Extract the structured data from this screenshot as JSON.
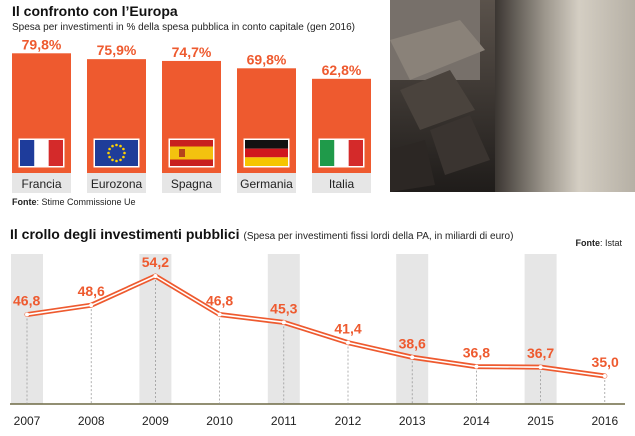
{
  "top": {
    "title": "Il confronto con l’Europa",
    "subtitle": "Spesa per investimenti in % della spesa pubblica in conto capitale (gen 2016)",
    "source_label": "Fonte",
    "source_text": ": Stime Commissione Ue"
  },
  "bottom": {
    "title": "Il crollo degli investimenti pubblici",
    "subtitle": "(Spesa per investimenti fissi lordi della PA, in miliardi di euro)",
    "source_label": "Fonte",
    "source_text": ": Istat"
  },
  "colors": {
    "accent": "#EE5A2F",
    "band": "#E6E6E6",
    "baseline": "#6E6A45"
  },
  "chart_data": [
    {
      "type": "bar",
      "categories": [
        "Francia",
        "Eurozona",
        "Spagna",
        "Germania",
        "Italia"
      ],
      "values": [
        79.8,
        75.9,
        74.7,
        69.8,
        62.8
      ],
      "value_labels": [
        "79,8%",
        "75,9%",
        "74,7%",
        "69,8%",
        "62,8%"
      ],
      "flags": [
        "france-flag",
        "eu-flag",
        "spain-flag",
        "germany-flag",
        "italy-flag"
      ],
      "ylim": [
        0,
        80
      ]
    },
    {
      "type": "line",
      "x": [
        "2007",
        "2008",
        "2009",
        "2010",
        "2011",
        "2012",
        "2013",
        "2014",
        "2015",
        "2016"
      ],
      "values": [
        46.8,
        48.6,
        54.2,
        46.8,
        45.3,
        41.4,
        38.6,
        36.8,
        36.7,
        35.0
      ],
      "value_labels": [
        "46,8",
        "48,6",
        "54,2",
        "46,8",
        "45,3",
        "41,4",
        "38,6",
        "36,8",
        "36,7",
        "35,0"
      ],
      "ylim": [
        35,
        54.2
      ]
    }
  ]
}
